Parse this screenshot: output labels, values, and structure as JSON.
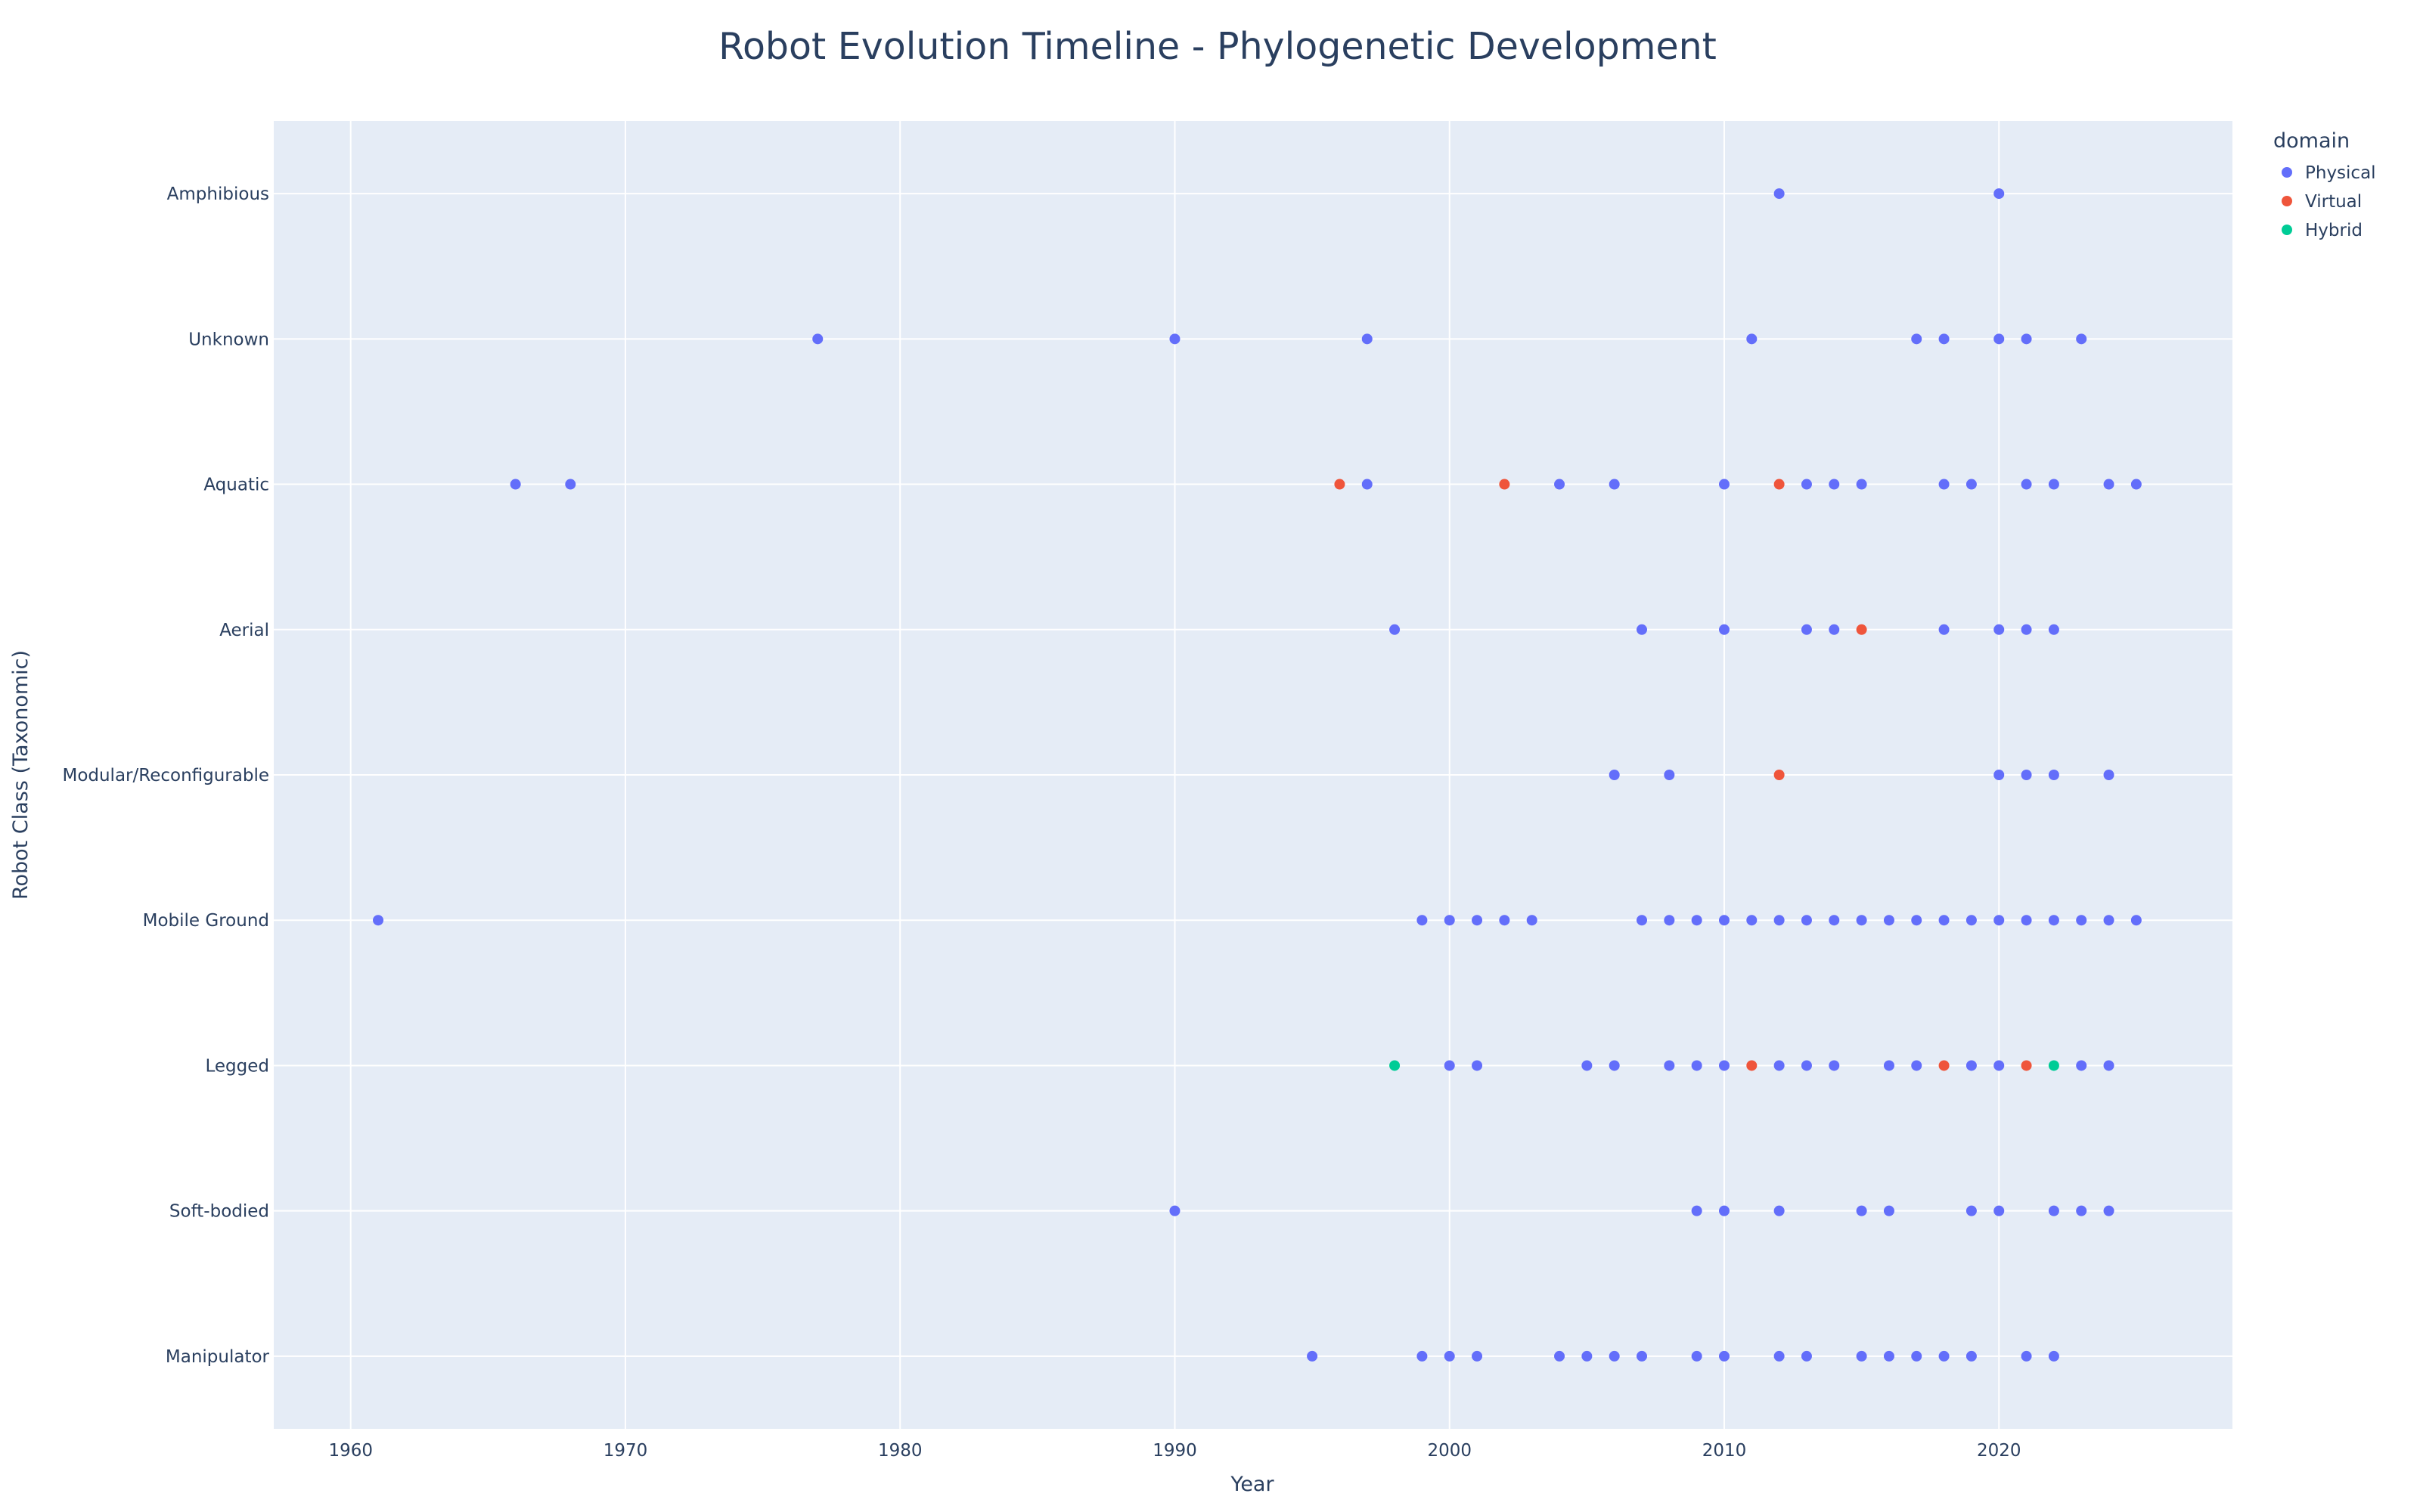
{
  "chart_data": {
    "type": "scatter",
    "title": "Robot Evolution Timeline - Phylogenetic Development",
    "xlabel": "Year",
    "ylabel": "Robot Class (Taxonomic)",
    "xlim": [
      1957.2,
      2028.5
    ],
    "x_ticks": [
      1960,
      1970,
      1980,
      1990,
      2000,
      2010,
      2020
    ],
    "categories": [
      "Manipulator",
      "Soft-bodied",
      "Legged",
      "Mobile Ground",
      "Modular/Reconfigurable",
      "Aerial",
      "Aquatic",
      "Unknown",
      "Amphibious"
    ],
    "grid": true,
    "legend": {
      "title": "domain",
      "position": "top-right"
    },
    "series": [
      {
        "name": "Physical",
        "color": "#636efa",
        "points": [
          [
            2012,
            "Amphibious"
          ],
          [
            2020,
            "Amphibious"
          ],
          [
            1977,
            "Unknown"
          ],
          [
            1990,
            "Unknown"
          ],
          [
            1997,
            "Unknown"
          ],
          [
            2011,
            "Unknown"
          ],
          [
            2017,
            "Unknown"
          ],
          [
            2018,
            "Unknown"
          ],
          [
            2020,
            "Unknown"
          ],
          [
            2021,
            "Unknown"
          ],
          [
            2023,
            "Unknown"
          ],
          [
            1966,
            "Aquatic"
          ],
          [
            1968,
            "Aquatic"
          ],
          [
            1997,
            "Aquatic"
          ],
          [
            2004,
            "Aquatic"
          ],
          [
            2006,
            "Aquatic"
          ],
          [
            2010,
            "Aquatic"
          ],
          [
            2013,
            "Aquatic"
          ],
          [
            2014,
            "Aquatic"
          ],
          [
            2015,
            "Aquatic"
          ],
          [
            2018,
            "Aquatic"
          ],
          [
            2019,
            "Aquatic"
          ],
          [
            2021,
            "Aquatic"
          ],
          [
            2022,
            "Aquatic"
          ],
          [
            2024,
            "Aquatic"
          ],
          [
            2025,
            "Aquatic"
          ],
          [
            1998,
            "Aerial"
          ],
          [
            2007,
            "Aerial"
          ],
          [
            2010,
            "Aerial"
          ],
          [
            2013,
            "Aerial"
          ],
          [
            2014,
            "Aerial"
          ],
          [
            2018,
            "Aerial"
          ],
          [
            2020,
            "Aerial"
          ],
          [
            2021,
            "Aerial"
          ],
          [
            2022,
            "Aerial"
          ],
          [
            2006,
            "Modular/Reconfigurable"
          ],
          [
            2008,
            "Modular/Reconfigurable"
          ],
          [
            2020,
            "Modular/Reconfigurable"
          ],
          [
            2021,
            "Modular/Reconfigurable"
          ],
          [
            2022,
            "Modular/Reconfigurable"
          ],
          [
            2024,
            "Modular/Reconfigurable"
          ],
          [
            1961,
            "Mobile Ground"
          ],
          [
            1999,
            "Mobile Ground"
          ],
          [
            2000,
            "Mobile Ground"
          ],
          [
            2001,
            "Mobile Ground"
          ],
          [
            2002,
            "Mobile Ground"
          ],
          [
            2003,
            "Mobile Ground"
          ],
          [
            2007,
            "Mobile Ground"
          ],
          [
            2008,
            "Mobile Ground"
          ],
          [
            2009,
            "Mobile Ground"
          ],
          [
            2010,
            "Mobile Ground"
          ],
          [
            2011,
            "Mobile Ground"
          ],
          [
            2012,
            "Mobile Ground"
          ],
          [
            2013,
            "Mobile Ground"
          ],
          [
            2014,
            "Mobile Ground"
          ],
          [
            2015,
            "Mobile Ground"
          ],
          [
            2016,
            "Mobile Ground"
          ],
          [
            2017,
            "Mobile Ground"
          ],
          [
            2018,
            "Mobile Ground"
          ],
          [
            2019,
            "Mobile Ground"
          ],
          [
            2020,
            "Mobile Ground"
          ],
          [
            2021,
            "Mobile Ground"
          ],
          [
            2022,
            "Mobile Ground"
          ],
          [
            2023,
            "Mobile Ground"
          ],
          [
            2024,
            "Mobile Ground"
          ],
          [
            2025,
            "Mobile Ground"
          ],
          [
            2000,
            "Legged"
          ],
          [
            2001,
            "Legged"
          ],
          [
            2005,
            "Legged"
          ],
          [
            2006,
            "Legged"
          ],
          [
            2008,
            "Legged"
          ],
          [
            2009,
            "Legged"
          ],
          [
            2010,
            "Legged"
          ],
          [
            2012,
            "Legged"
          ],
          [
            2013,
            "Legged"
          ],
          [
            2014,
            "Legged"
          ],
          [
            2016,
            "Legged"
          ],
          [
            2017,
            "Legged"
          ],
          [
            2019,
            "Legged"
          ],
          [
            2020,
            "Legged"
          ],
          [
            2023,
            "Legged"
          ],
          [
            2024,
            "Legged"
          ],
          [
            1990,
            "Soft-bodied"
          ],
          [
            2009,
            "Soft-bodied"
          ],
          [
            2010,
            "Soft-bodied"
          ],
          [
            2012,
            "Soft-bodied"
          ],
          [
            2015,
            "Soft-bodied"
          ],
          [
            2016,
            "Soft-bodied"
          ],
          [
            2019,
            "Soft-bodied"
          ],
          [
            2020,
            "Soft-bodied"
          ],
          [
            2022,
            "Soft-bodied"
          ],
          [
            2023,
            "Soft-bodied"
          ],
          [
            2024,
            "Soft-bodied"
          ],
          [
            1995,
            "Manipulator"
          ],
          [
            1999,
            "Manipulator"
          ],
          [
            2000,
            "Manipulator"
          ],
          [
            2001,
            "Manipulator"
          ],
          [
            2004,
            "Manipulator"
          ],
          [
            2005,
            "Manipulator"
          ],
          [
            2006,
            "Manipulator"
          ],
          [
            2007,
            "Manipulator"
          ],
          [
            2009,
            "Manipulator"
          ],
          [
            2010,
            "Manipulator"
          ],
          [
            2012,
            "Manipulator"
          ],
          [
            2013,
            "Manipulator"
          ],
          [
            2015,
            "Manipulator"
          ],
          [
            2016,
            "Manipulator"
          ],
          [
            2017,
            "Manipulator"
          ],
          [
            2018,
            "Manipulator"
          ],
          [
            2019,
            "Manipulator"
          ],
          [
            2021,
            "Manipulator"
          ],
          [
            2022,
            "Manipulator"
          ]
        ]
      },
      {
        "name": "Virtual",
        "color": "#ef553b",
        "points": [
          [
            1996,
            "Aquatic"
          ],
          [
            2002,
            "Aquatic"
          ],
          [
            2012,
            "Aquatic"
          ],
          [
            2015,
            "Aerial"
          ],
          [
            2012,
            "Modular/Reconfigurable"
          ],
          [
            2011,
            "Legged"
          ],
          [
            2018,
            "Legged"
          ],
          [
            2021,
            "Legged"
          ]
        ]
      },
      {
        "name": "Hybrid",
        "color": "#00cc96",
        "points": [
          [
            1998,
            "Legged"
          ],
          [
            2022,
            "Legged"
          ]
        ]
      }
    ]
  }
}
